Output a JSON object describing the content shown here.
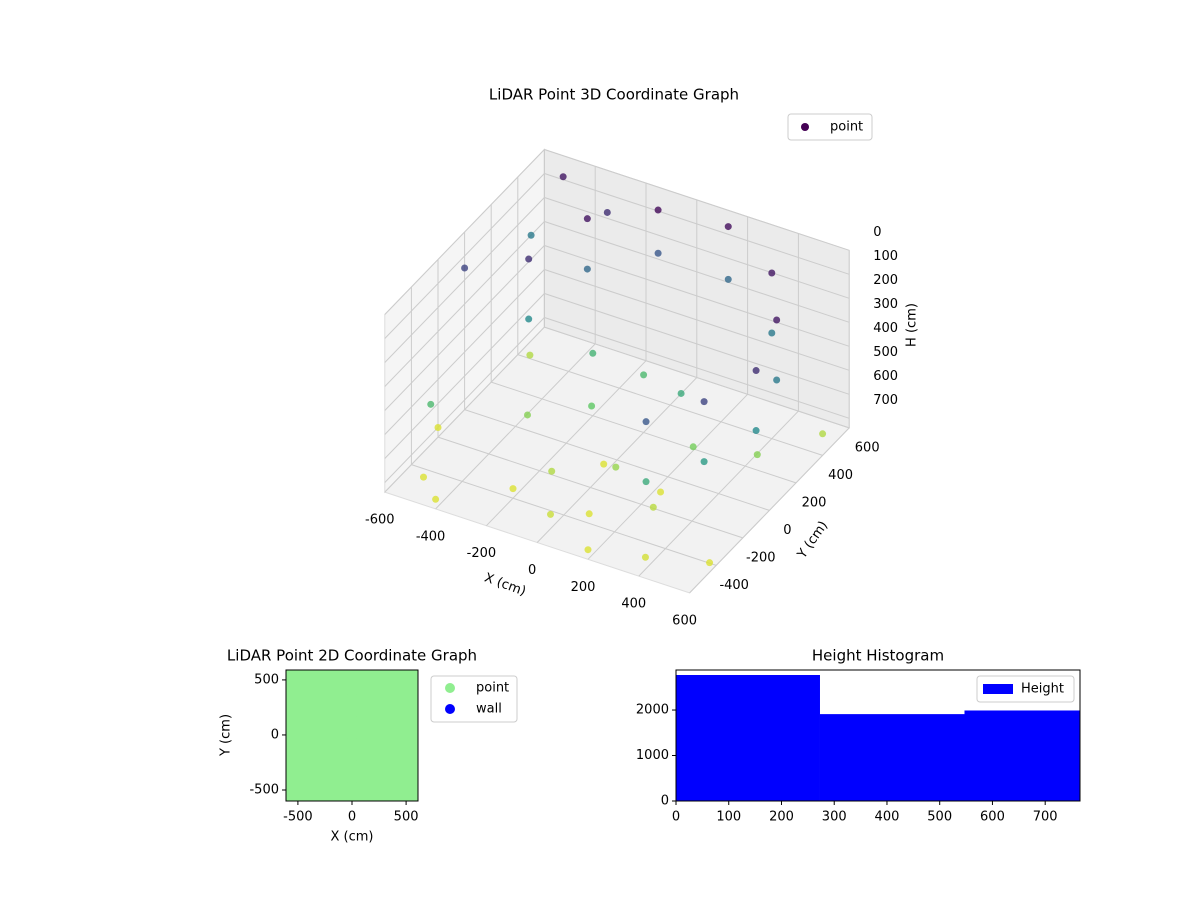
{
  "chart_data": [
    {
      "type": "scatter3d",
      "title": "LiDAR Point 3D Coordinate Graph",
      "xlabel": "X (cm)",
      "ylabel": "Y (cm)",
      "zlabel": "H (cm)",
      "series": [
        {
          "name": "point",
          "color": "#440154",
          "cmap": "viridis",
          "x": [
            600,
            600,
            550,
            550,
            400,
            400,
            150,
            150,
            -100,
            -100,
            -300,
            -300,
            500,
            500,
            350,
            350,
            -400,
            -400,
            -600,
            -500,
            -200,
            0,
            200,
            400,
            600,
            -300,
            -100,
            100,
            300,
            0,
            200,
            -200,
            -500,
            -600,
            -600,
            -550,
            100,
            -100,
            300,
            500,
            600,
            -400,
            0,
            -300,
            -500,
            250
          ],
          "y": [
            -100,
            -100,
            150,
            150,
            400,
            400,
            550,
            550,
            500,
            500,
            350,
            350,
            -300,
            -300,
            -450,
            -450,
            100,
            100,
            -200,
            300,
            -400,
            -500,
            -600,
            -550,
            -450,
            -100,
            0,
            -200,
            -300,
            200,
            100,
            200,
            -500,
            500,
            0,
            -350,
            -400,
            -300,
            0,
            100,
            400,
            -600,
            -100,
            500,
            550,
            -150
          ],
          "z": [
            100,
            350,
            50,
            300,
            50,
            300,
            30,
            250,
            20,
            200,
            40,
            250,
            150,
            400,
            200,
            450,
            100,
            350,
            700,
            650,
            700,
            680,
            700,
            690,
            700,
            600,
            550,
            620,
            660,
            500,
            450,
            480,
            700,
            300,
            150,
            500,
            700,
            650,
            580,
            600,
            650,
            700,
            700,
            100,
            50,
            700
          ]
        }
      ],
      "xlim": [
        -600,
        600
      ],
      "ylim": [
        -600,
        600
      ],
      "zlim": [
        0,
        740
      ],
      "zinverted": true,
      "xticks": [
        -600,
        -400,
        -200,
        0,
        200,
        400,
        600
      ],
      "yticks": [
        -400,
        -200,
        0,
        200,
        400,
        600
      ],
      "zticks": [
        0,
        100,
        200,
        300,
        400,
        500,
        600,
        700
      ],
      "legend": "upper right"
    },
    {
      "type": "scatter",
      "title": "LiDAR Point 2D Coordinate Graph",
      "xlabel": "X (cm)",
      "ylabel": "Y (cm)",
      "series": [
        {
          "name": "point",
          "color": "#90ee90",
          "x": [
            -500,
            -300,
            -100,
            100,
            300,
            500,
            -500,
            -300,
            -100,
            100,
            300,
            500,
            -500,
            -300,
            -100,
            100,
            300,
            500,
            -500,
            -300,
            -100,
            100,
            300,
            500,
            -500,
            -300,
            -100,
            100,
            300,
            500,
            -500,
            -300,
            -100,
            100,
            300,
            500
          ],
          "y": [
            -500,
            -500,
            -500,
            -500,
            -500,
            -500,
            -300,
            -300,
            -300,
            -300,
            -300,
            -300,
            -100,
            -100,
            -100,
            -100,
            -100,
            -100,
            100,
            100,
            100,
            100,
            100,
            100,
            300,
            300,
            300,
            300,
            300,
            300,
            500,
            500,
            500,
            500,
            500,
            500
          ]
        },
        {
          "name": "wall",
          "color": "#0000ff",
          "x": [],
          "y": []
        }
      ],
      "xlim": [
        -610,
        610
      ],
      "ylim": [
        -600,
        590
      ],
      "xticks": [
        -500,
        0,
        500
      ],
      "yticks": [
        -500,
        0,
        500
      ],
      "legend": "outside right"
    },
    {
      "type": "histogram",
      "title": "Height Histogram",
      "name": "Height",
      "color": "#0000ff",
      "bins": [
        0,
        273,
        547,
        766
      ],
      "counts": [
        2770,
        1910,
        1990
      ],
      "xlim": [
        0,
        766
      ],
      "ylim": [
        0,
        2880
      ],
      "xticks": [
        0,
        100,
        200,
        300,
        400,
        500,
        600,
        700
      ],
      "yticks": [
        0,
        1000,
        2000
      ],
      "legend": "upper right"
    }
  ]
}
